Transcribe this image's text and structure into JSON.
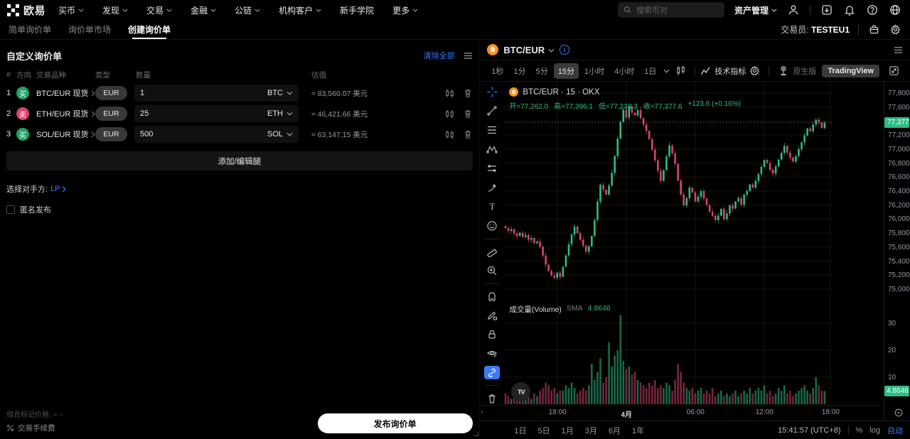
{
  "topnav": {
    "brand": "欧易",
    "items": [
      {
        "label": "买币",
        "caret": true
      },
      {
        "label": "发现",
        "caret": true
      },
      {
        "label": "交易",
        "caret": true
      },
      {
        "label": "金融",
        "caret": true
      },
      {
        "label": "公链",
        "caret": true
      },
      {
        "label": "机构客户",
        "caret": true
      },
      {
        "label": "新手学院",
        "caret": false
      },
      {
        "label": "更多",
        "caret": true
      }
    ],
    "search_placeholder": "搜索币对",
    "assets_label": "资产管理"
  },
  "subnav": {
    "tabs": [
      "简单询价单",
      "询价单市场",
      "创建询价单"
    ],
    "active_index": 2,
    "trader_label": "交易员:",
    "trader_value": "TESTEU1"
  },
  "rfq": {
    "title": "自定义询价单",
    "clear_all": "清除全部",
    "columns": [
      "#",
      "方向",
      "交易品种",
      "类型",
      "数量",
      "估值"
    ],
    "rows": [
      {
        "index": "1",
        "side": "买",
        "side_kind": "buy",
        "pair": "BTC/EUR 现货",
        "type": "EUR",
        "amount": "1",
        "currency": "BTC",
        "valuation": "≈ 83,560.07 美元"
      },
      {
        "index": "2",
        "side": "卖",
        "side_kind": "sell",
        "pair": "ETH/EUR 现货",
        "type": "EUR",
        "amount": "25",
        "currency": "ETH",
        "valuation": "≈ 46,421.66 美元"
      },
      {
        "index": "3",
        "side": "买",
        "side_kind": "buy",
        "pair": "SOL/EUR 现货",
        "type": "EUR",
        "amount": "500",
        "currency": "SOL",
        "valuation": "≈ 63,147.15 美元"
      }
    ],
    "add_leg": "添加/编辑腿",
    "counterparty_label": "选择对手方:",
    "counterparty_value": "LP",
    "anonymous_label": "匿名发布",
    "mark_price_label": "组合标记价格:",
    "mark_price_value": "≈ --",
    "fee_label": "交易手续费",
    "submit": "发布询价单"
  },
  "chart": {
    "symbol": "BTC/EUR",
    "timeframes": [
      "1秒",
      "1分",
      "5分",
      "15分",
      "1小时",
      "4小时",
      "1日"
    ],
    "active_timeframe": "15分",
    "indicators_label": "技术指标",
    "native_label": "原生版",
    "tv_label": "TradingView",
    "legend_title": "BTC/EUR · 15 · OKX",
    "ohlc_labels": {
      "open": "开=77,262.0",
      "high": "高=77,396.1",
      "low": "低=77,233.3",
      "close": "收=77,377.6",
      "change": "+123.6 (+0.16%)"
    },
    "volume_title": "成交量(Volume)",
    "sma_label": "SMA",
    "sma_value": "4.8646",
    "volume_badge": "4.8646",
    "price_badge": "77,377.6",
    "tv_watermark": "TV",
    "footer": {
      "ranges": [
        "1日",
        "5日",
        "1月",
        "3月",
        "6月",
        "1年"
      ],
      "clock": "15:41:57 (UTC+8)",
      "percent": "%",
      "log": "log",
      "auto": "自动"
    }
  },
  "chart_data": {
    "type": "candlestick+volume",
    "symbol": "BTC/EUR",
    "interval": "15分",
    "exchange": "OKX",
    "current": {
      "open": 77262.0,
      "high": 77396.1,
      "low": 77233.3,
      "close": 77377.6,
      "change": 123.6,
      "change_pct": "+0.16%"
    },
    "current_price": 77377.6,
    "sma_volume": 4.8646,
    "up_color": "#2ebd85",
    "down_color": "#d5466d",
    "y_axis": {
      "min": 75000,
      "max": 77800,
      "step": 200,
      "labels": [
        "77,800.0",
        "77,600.0",
        "77,400.0",
        "77,200.0",
        "77,000.0",
        "76,800.0",
        "76,600.0",
        "76,400.0",
        "76,200.0",
        "76,000.0",
        "75,800.0",
        "75,600.0",
        "75,400.0",
        "75,200.0",
        "75,000.0"
      ],
      "values": [
        77800,
        77600,
        77400,
        77200,
        77000,
        76800,
        76600,
        76400,
        76200,
        76000,
        75800,
        75600,
        75400,
        75200,
        75000
      ]
    },
    "volume_axis": [
      30,
      20,
      10
    ],
    "time_labels": [
      {
        "label": "18:00",
        "idx": 18,
        "bold": false
      },
      {
        "label": "4月",
        "idx": 42,
        "bold": true
      },
      {
        "label": "06:00",
        "idx": 66,
        "bold": false
      },
      {
        "label": "12:00",
        "idx": 90,
        "bold": false
      },
      {
        "label": "18:00",
        "idx": 113,
        "bold": false
      }
    ],
    "slots": 114,
    "first_open": 75900,
    "closes": [
      75870,
      75830,
      75855,
      75795,
      75760,
      75805,
      75745,
      75775,
      75705,
      75730,
      75655,
      75680,
      75605,
      75480,
      75350,
      75260,
      75195,
      75160,
      75235,
      75175,
      75320,
      75480,
      75640,
      75780,
      75895,
      75800,
      75705,
      75620,
      75535,
      75610,
      75760,
      75985,
      76250,
      76490,
      76420,
      76350,
      76480,
      76660,
      76900,
      77150,
      77390,
      77560,
      77450,
      77610,
      77520,
      77480,
      77555,
      77440,
      77350,
      77260,
      77140,
      76990,
      76840,
      76690,
      76545,
      76700,
      76895,
      77050,
      76940,
      76790,
      76550,
      76350,
      76195,
      76300,
      76450,
      76380,
      76255,
      76320,
      76400,
      76295,
      76200,
      76105,
      76050,
      75985,
      76050,
      76145,
      76000,
      76080,
      76195,
      76150,
      76250,
      76300,
      76205,
      76350,
      76400,
      76495,
      76450,
      76545,
      76645,
      76745,
      76845,
      76800,
      76705,
      76650,
      76750,
      76850,
      76945,
      77045,
      76950,
      76880,
      76820,
      76900,
      77000,
      77095,
      77195,
      77295,
      77255,
      77350,
      77420,
      77380,
      77300,
      77377.6
    ],
    "volumes": [
      4,
      3,
      2,
      3,
      2,
      4,
      3,
      2,
      3,
      2,
      4,
      3,
      5,
      6,
      8,
      7,
      5,
      6,
      4,
      5,
      5,
      7,
      6,
      8,
      6,
      4,
      5,
      6,
      5,
      7,
      15,
      9,
      12,
      17,
      8,
      10,
      23,
      14,
      18,
      20,
      33,
      16,
      13,
      14,
      11,
      12,
      9,
      8,
      7,
      6,
      8,
      7,
      9,
      6,
      7,
      6,
      8,
      7,
      5,
      9,
      15,
      12,
      8,
      6,
      5,
      6,
      4,
      5,
      6,
      4,
      5,
      4,
      6,
      3,
      4,
      5,
      3,
      4,
      3,
      4,
      5,
      3,
      4,
      5,
      4,
      6,
      4,
      5,
      6,
      5,
      7,
      4,
      5,
      3,
      4,
      6,
      5,
      7,
      4,
      5,
      3,
      4,
      5,
      6,
      7,
      5,
      4,
      6,
      10,
      7,
      5,
      4.8646
    ]
  }
}
